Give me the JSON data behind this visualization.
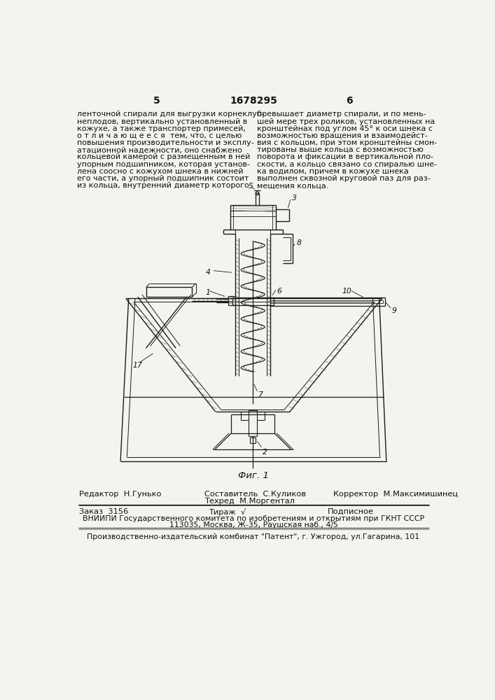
{
  "bg_color": "#f5f3ee",
  "page_num_left": "5",
  "page_num_center": "1678295",
  "page_num_right": "6",
  "text_left_col": "ленточной спирали для выгрузки корнеклуб-\nнеплодов, вертикально установленный в\nкожухе, а также транспортер примесей,\nо т л и ч а ю щ е е с я  тем, что, с целью\nповышения производительности и эксплу-\nатационной надежности, оно снабжено\nкольцевой камерой с размещенным в ней\nупорным подшипником, которая установ-\nлена соосно с кожухом шнека в нижней\nего части, а упорный подшипник состоит\nиз кольца, внутренний диаметр которого",
  "text_right_col": "превышает диаметр спирали, и по мень-\nшей мере трех роликов, установленных на\nкронштейнах под углом 45° к оси шнека с\nвозможностью вращения и взаимодейст-\nвия с кольцом, при этом кронштейны смон-\nтированы выше кольца с возможностью\nповорота и фиксации в вертикальной пло-\nскости, а кольцо связано со спиралью шне-\nка водилом, причем в кожухе шнека\nвыполнен сквозной круговой паз для раз-\nмещения кольца.",
  "fig_caption": "Фиг. 1",
  "editor_label": "Редактор",
  "editor_name": "Н.Гунько",
  "composer_label": "Составитель",
  "composer_name": "С.Куликов",
  "techred_label": "Техред",
  "techred_name": "М.Моргентал",
  "corrector_label": "Корректор",
  "corrector_name": "М.Максимишинец",
  "order_label": "Заказ",
  "order_num": "3156",
  "tirazh_label": "Тираж",
  "podpisnoe": "Подписное",
  "vniipи_line1": "ВНИИПИ Государственного комитета по изобретениям и открытиям при ГКНТ СССР",
  "vniipи_line2": "113035, Москва, Ж-35, Раушская наб., 4/5",
  "publisher": "Производственно-издательский комбинат \"Патент\", г. Ужгород, ул.Гагарина, 101"
}
